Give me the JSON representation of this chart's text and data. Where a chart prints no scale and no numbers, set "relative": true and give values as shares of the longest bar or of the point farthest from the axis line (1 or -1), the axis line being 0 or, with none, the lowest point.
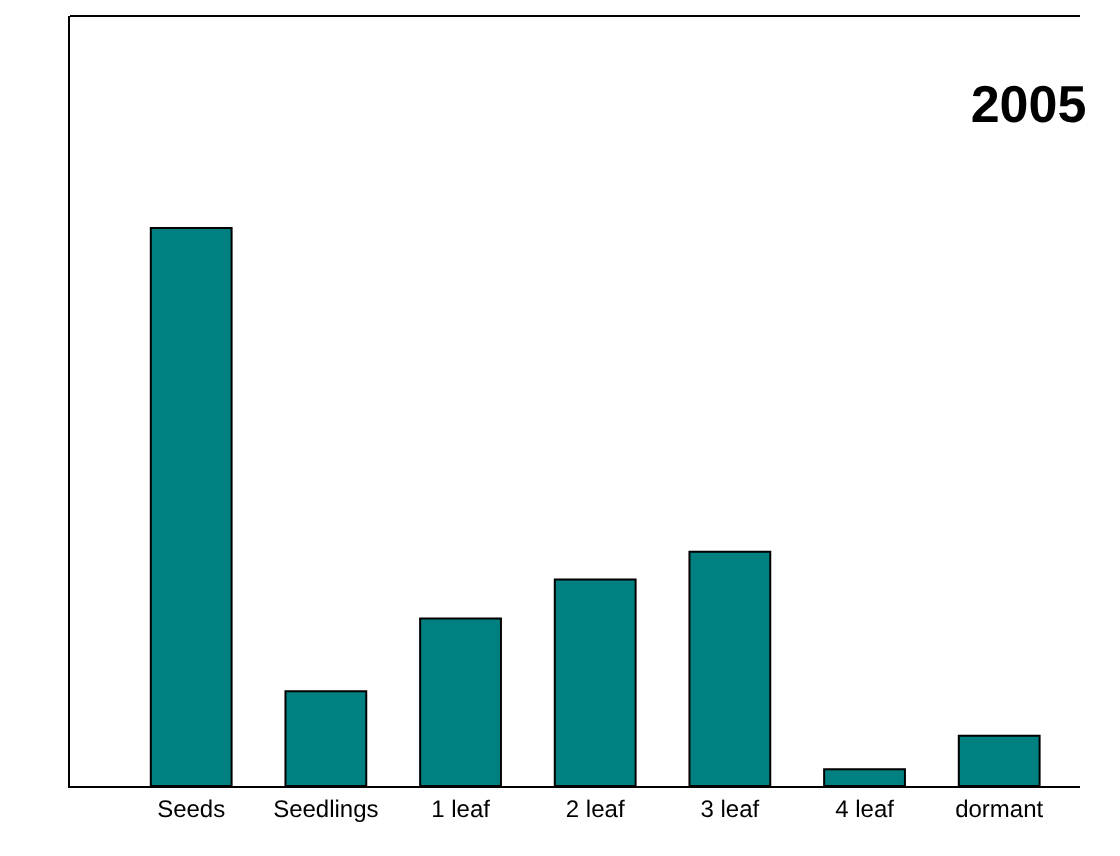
{
  "chart_data": {
    "type": "bar",
    "title": "2005",
    "relative": true,
    "categories": [
      "Seeds",
      "Seedlings",
      "1 leaf",
      "2 leaf",
      "3 leaf",
      "4 leaf",
      "dormant"
    ],
    "values": [
      1,
      0.17,
      0.3,
      0.37,
      0.42,
      0.03,
      0.09
    ],
    "color": "#008080"
  }
}
